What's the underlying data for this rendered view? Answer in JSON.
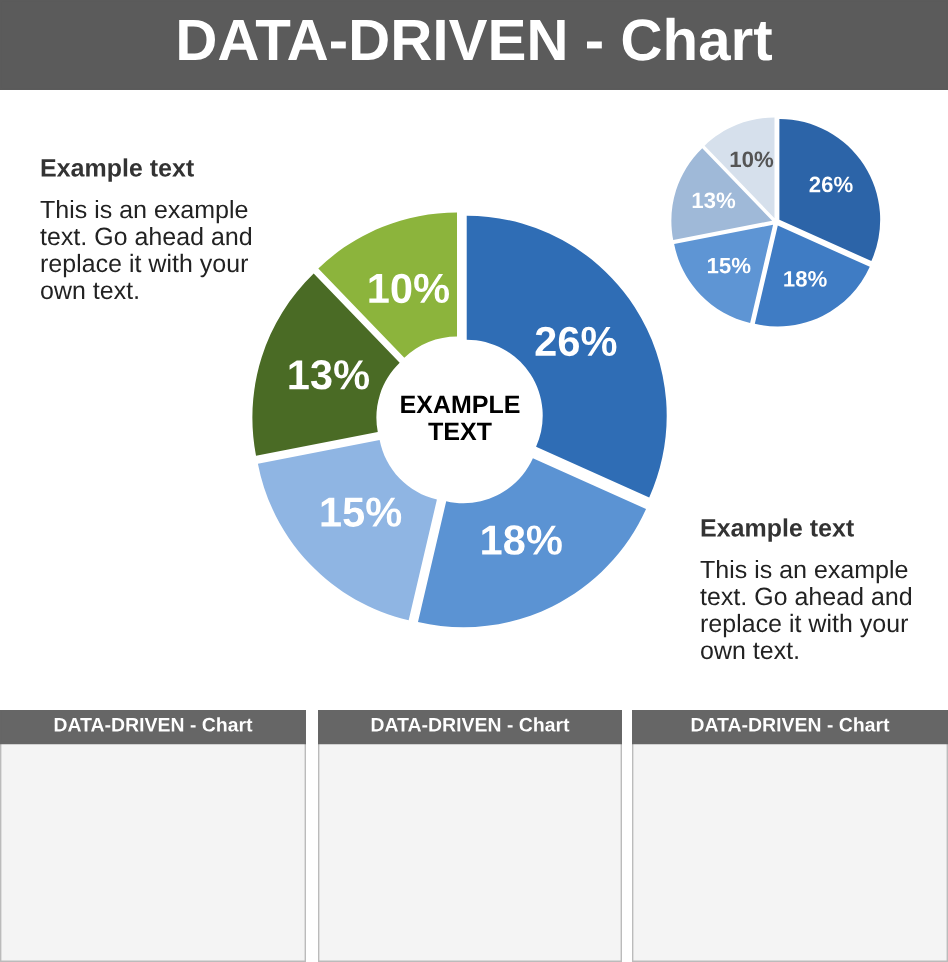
{
  "chart_data": [
    {
      "type": "donut",
      "title": "DATA-DRIVEN - Chart",
      "categories": [
        null,
        null,
        null,
        null,
        null
      ],
      "values": [
        26,
        18,
        15,
        13,
        10
      ],
      "colors": [
        "#2f6db5",
        "#5b93d3",
        "#8fb5e3",
        "#4a6b25",
        "#8cb43c"
      ],
      "value_labels": [
        "26%",
        "18%",
        "15%",
        "13%",
        "10%"
      ],
      "annotations": [
        "EXAMPLE\nTEXT",
        "Example text",
        "This is an example\ntext. Go ahead and\nreplace it with your\nown text.",
        "Example text",
        "This is an example\ntext. Go ahead and\nreplace it with your\nown text.",
        "DATA-DRIVEN - Chart",
        "DATA-DRIVEN - Chart",
        "DATA-DRIVEN - Chart"
      ]
    },
    {
      "type": "pie",
      "categories": [
        null,
        null,
        null,
        null,
        null
      ],
      "values": [
        26,
        18,
        15,
        13,
        10
      ],
      "colors": [
        "#2c64a8",
        "#3f7cc4",
        "#5e95d4",
        "#9fb9d8",
        "#d6e0ec"
      ],
      "value_labels": [
        "26%",
        "18%",
        "15%",
        "13%",
        "10%"
      ]
    }
  ]
}
